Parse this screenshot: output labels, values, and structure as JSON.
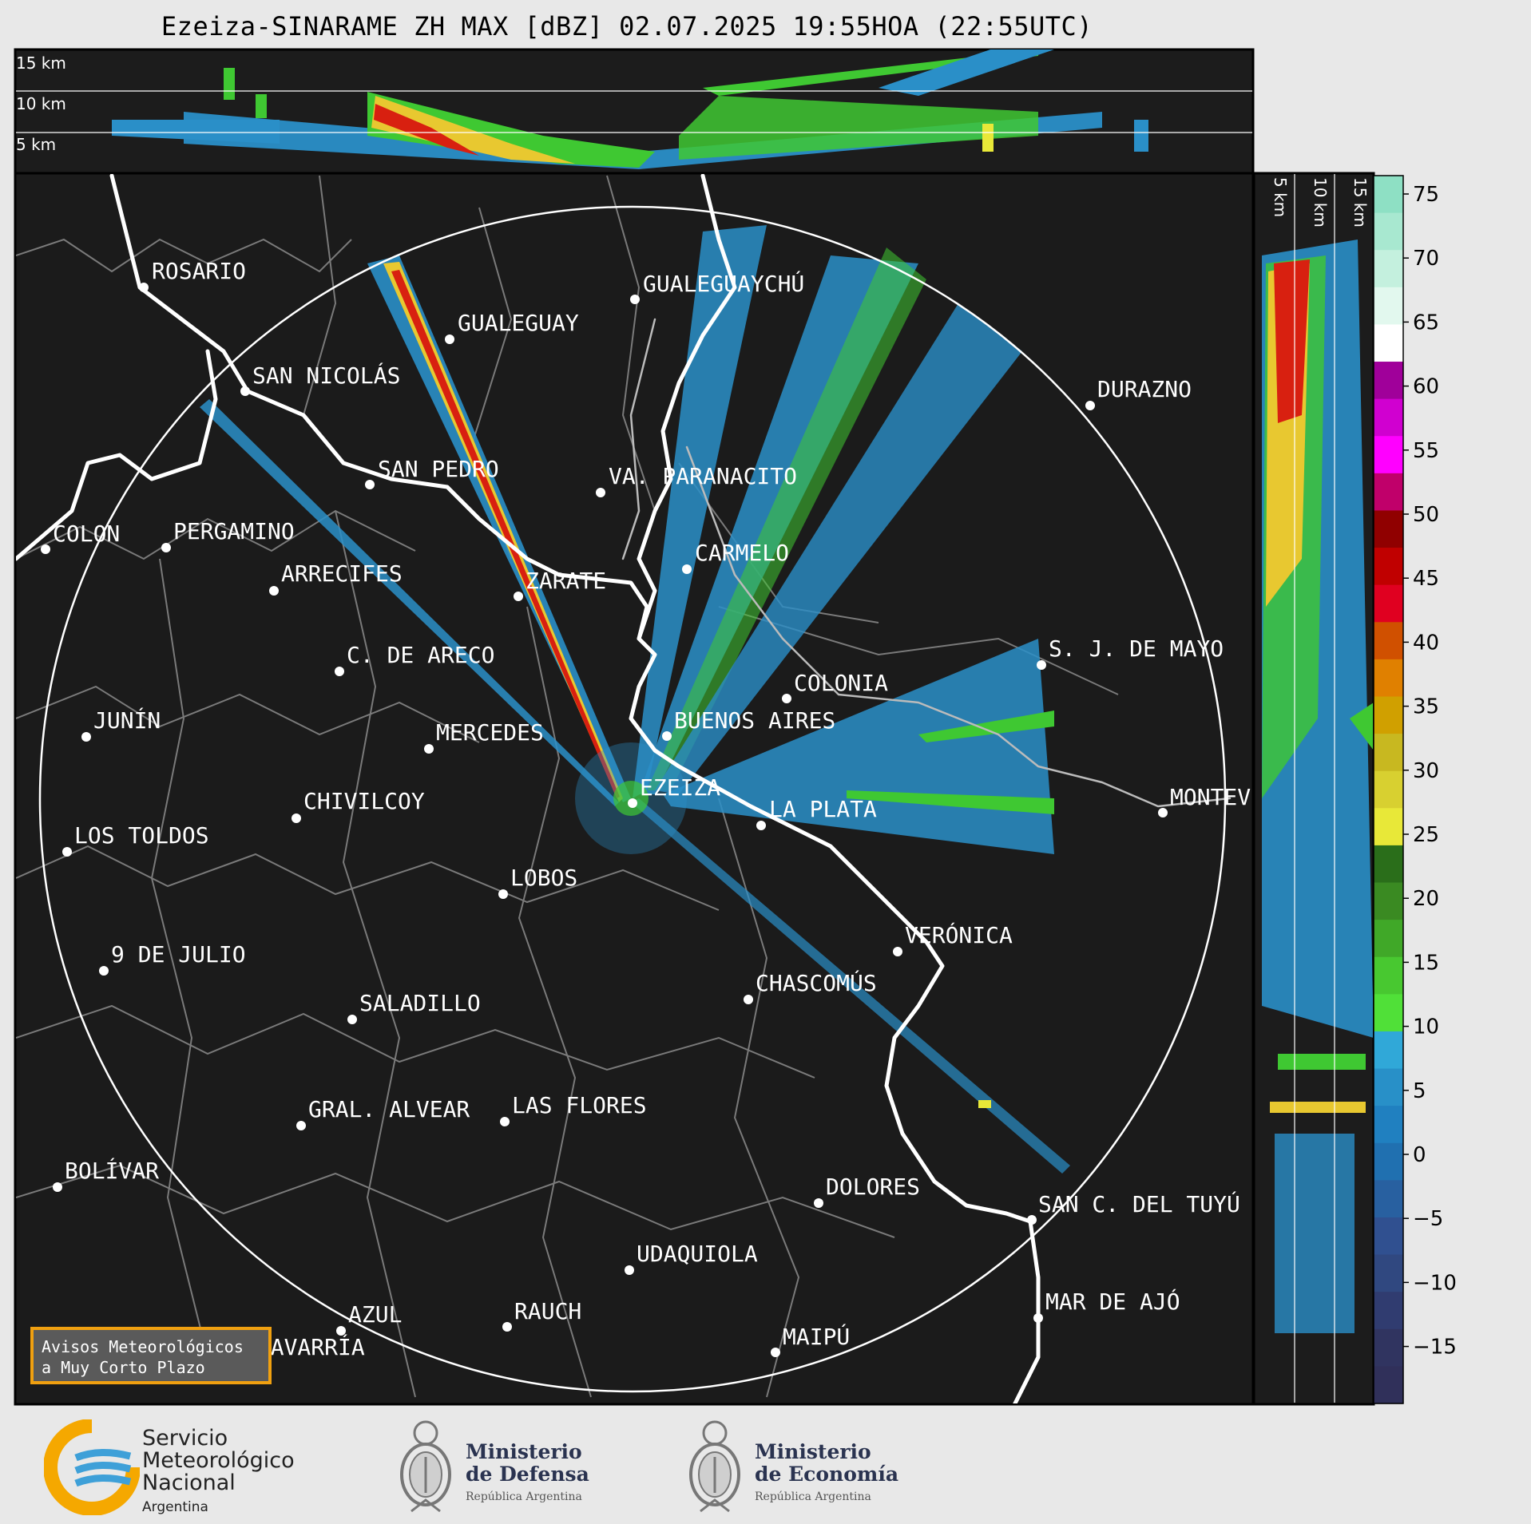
{
  "title": "Ezeiza-SINARAME ZH MAX [dBZ] 02.07.2025 19:55HOA (22:55UTC)",
  "height_panel": {
    "labels": [
      "15 km",
      "10 km",
      "5 km"
    ]
  },
  "side_panel": {
    "labels": [
      "5 km",
      "10 km",
      "15 km"
    ]
  },
  "colorbar": {
    "ticks": [
      "75",
      "70",
      "65",
      "60",
      "55",
      "50",
      "45",
      "40",
      "35",
      "30",
      "25",
      "20",
      "15",
      "10",
      "5",
      "0",
      "−5",
      "−10",
      "−15"
    ],
    "colors": [
      "#8ee0c4",
      "#a8e8d0",
      "#c4f0de",
      "#e2f8ee",
      "#ffffff",
      "#a0009a",
      "#d000d0",
      "#ff00ff",
      "#c0006a",
      "#900000",
      "#c00000",
      "#e00020",
      "#d05000",
      "#e08000",
      "#d0a000",
      "#c8b820",
      "#d8d030",
      "#e8e838",
      "#2a6e1a",
      "#3a8a22",
      "#40a828",
      "#48c830",
      "#50e038",
      "#30a8d8",
      "#2890c8",
      "#2080c0",
      "#2070b0",
      "#2860a0",
      "#305090",
      "#304880",
      "#303c70",
      "#303460",
      "#30305a"
    ]
  },
  "cities": [
    {
      "name": "ROSARIO"
    },
    {
      "name": "GUALEGUAYCHÚ"
    },
    {
      "name": "GUALEGUAY"
    },
    {
      "name": "SAN NICOLÁS"
    },
    {
      "name": "DURAZNO"
    },
    {
      "name": "SAN PEDRO"
    },
    {
      "name": "VA. PARANACITO"
    },
    {
      "name": "COLON"
    },
    {
      "name": "PERGAMINO"
    },
    {
      "name": "CARMELO"
    },
    {
      "name": "ARRECIFES"
    },
    {
      "name": "ZARATE"
    },
    {
      "name": "S. J. DE MAYO"
    },
    {
      "name": "C. DE ARECO"
    },
    {
      "name": "COLONIA"
    },
    {
      "name": "JUNÍN"
    },
    {
      "name": "BUENOS AIRES"
    },
    {
      "name": "MERCEDES"
    },
    {
      "name": "EZEIZA"
    },
    {
      "name": "MONTEVIDEO"
    },
    {
      "name": "CHIVILCOY"
    },
    {
      "name": "LA PLATA"
    },
    {
      "name": "LOS TOLDOS"
    },
    {
      "name": "LOBOS"
    },
    {
      "name": "VERÓNICA"
    },
    {
      "name": "9 DE JULIO"
    },
    {
      "name": "CHASCOMÚS"
    },
    {
      "name": "SALADILLO"
    },
    {
      "name": "GRAL. ALVEAR"
    },
    {
      "name": "LAS FLORES"
    },
    {
      "name": "BOLÍVAR"
    },
    {
      "name": "DOLORES"
    },
    {
      "name": "SAN C. DEL TUYÚ"
    },
    {
      "name": "UDAQUIOLA"
    },
    {
      "name": "MAR DE AJÓ"
    },
    {
      "name": "AZUL"
    },
    {
      "name": "RAUCH"
    },
    {
      "name": "MAIPÚ"
    },
    {
      "name": "OLAVARRÍA"
    }
  ],
  "notice": {
    "line1": "Avisos Meteorológicos",
    "line2": "a Muy Corto Plazo"
  },
  "logos": {
    "smn": {
      "line1": "Servicio",
      "line2": "Meteorológico",
      "line3": "Nacional",
      "line4": "Argentina"
    },
    "defensa": {
      "line1": "Ministerio",
      "line2": "de Defensa",
      "line3": "República Argentina"
    },
    "economia": {
      "line1": "Ministerio",
      "line2": "de Economía",
      "line3": "República Argentina"
    }
  }
}
